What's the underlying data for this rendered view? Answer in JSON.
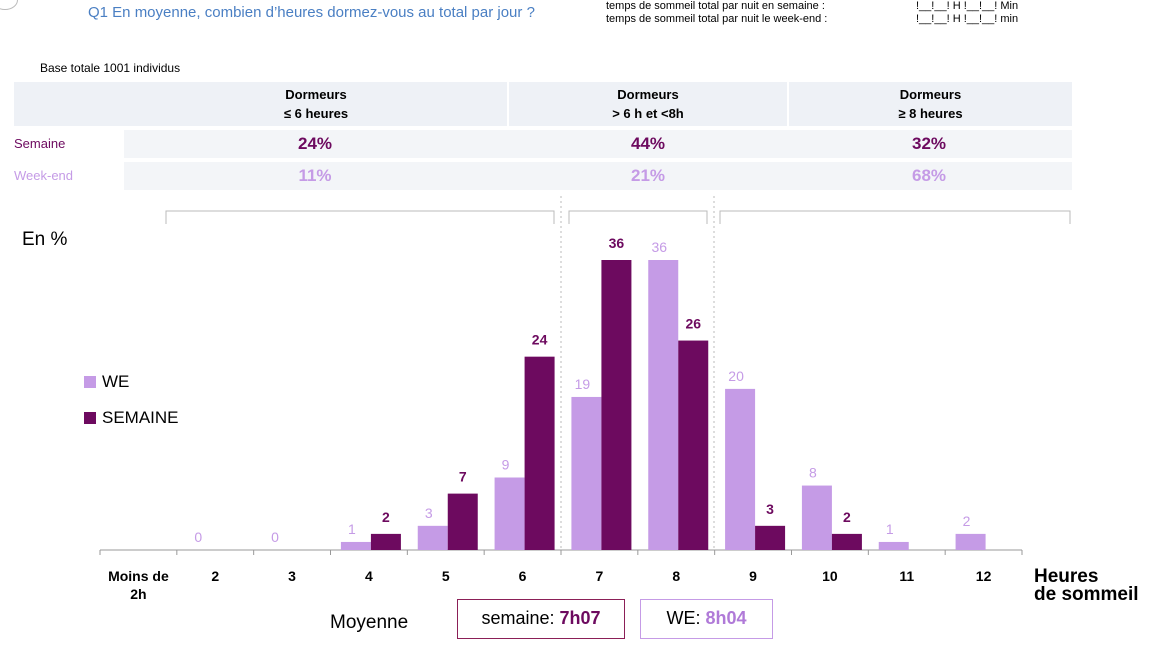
{
  "question": {
    "text": "Q1 En moyenne, combien d’heures dormez-vous au total par jour ?",
    "line1": "temps de sommeil total par nuit en semaine :",
    "line1_value": "!__!__! H !__!__!  Min",
    "line2": "temps de sommeil total par nuit le week-end :",
    "line2_value": "!__!__! H !__!__! min"
  },
  "base_text": "Base totale 1001 individus",
  "summary_table": {
    "columns": [
      {
        "line1": "Dormeurs",
        "line2": "≤ 6 heures"
      },
      {
        "line1": "Dormeurs",
        "line2": "> 6 h et <8h"
      },
      {
        "line1": "Dormeurs",
        "line2": "≥ 8 heures"
      }
    ],
    "rows": [
      {
        "label": "Semaine",
        "values": [
          "24%",
          "44%",
          "32%"
        ]
      },
      {
        "label": "Week-end",
        "values": [
          "11%",
          "21%",
          "68%"
        ]
      }
    ]
  },
  "colors": {
    "we": "#c59be6",
    "semaine": "#6d0a5f",
    "semaine_text": "#6d0a5f",
    "we_text": "#c59be6",
    "axis": "#999999"
  },
  "chart_data": {
    "type": "bar",
    "ylabel": "En %",
    "xlabel": "Heures de sommeil",
    "xlabel_line1": "Heures",
    "xlabel_line2": "de sommeil",
    "categories": [
      "Moins de 2h",
      "2",
      "3",
      "4",
      "5",
      "6",
      "7",
      "8",
      "9",
      "10",
      "11",
      "12"
    ],
    "categories_display": [
      [
        "Moins de",
        "2h"
      ],
      [
        "2"
      ],
      [
        "3"
      ],
      [
        "4"
      ],
      [
        "5"
      ],
      [
        "6"
      ],
      [
        "7"
      ],
      [
        "8"
      ],
      [
        "9"
      ],
      [
        "10"
      ],
      [
        "11"
      ],
      [
        "12"
      ]
    ],
    "series": [
      {
        "name": "WE",
        "values": [
          null,
          0,
          0,
          1,
          3,
          9,
          19,
          36,
          20,
          8,
          1,
          2
        ]
      },
      {
        "name": "SEMAINE",
        "values": [
          null,
          null,
          null,
          2,
          7,
          24,
          36,
          26,
          3,
          2,
          null,
          null
        ]
      }
    ],
    "ylim": [
      0,
      36
    ],
    "grid": false,
    "legend_position": "left"
  },
  "moyenne": {
    "label": "Moyenne",
    "semaine_label": "semaine: ",
    "semaine_value": "7h07",
    "we_label": "WE: ",
    "we_value": "8h04"
  }
}
